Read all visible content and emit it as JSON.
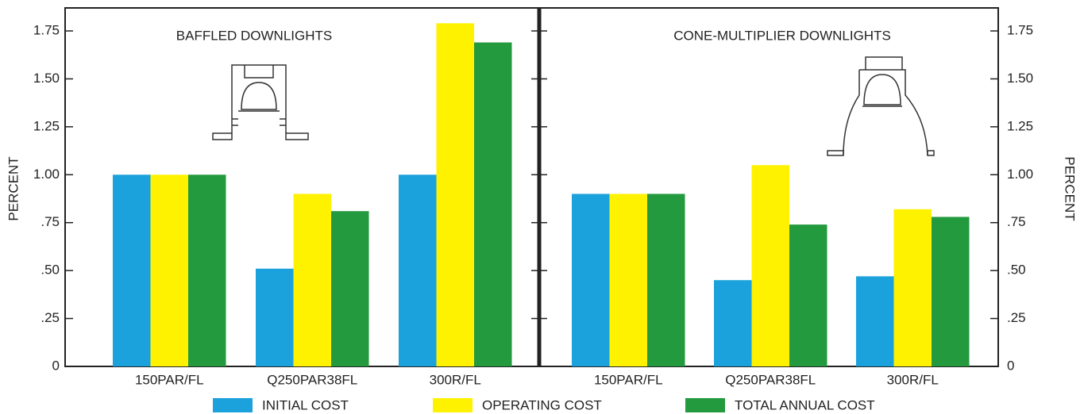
{
  "chart_data": [
    {
      "type": "bar",
      "title": "BAFFLED DOWNLIGHTS",
      "y_label": "PERCENT",
      "categories": [
        "150PAR/FL",
        "Q250PAR38FL",
        "300R/FL"
      ],
      "series": [
        {
          "name": "INITIAL COST",
          "color": "#1ba1dc",
          "values": [
            1.0,
            0.51,
            1.0
          ]
        },
        {
          "name": "OPERATING COST",
          "color": "#fff200",
          "values": [
            1.0,
            0.9,
            1.79
          ]
        },
        {
          "name": "TOTAL ANNUAL COST",
          "color": "#249a3e",
          "values": [
            1.0,
            0.81,
            1.69
          ]
        }
      ],
      "ylim": [
        0,
        1.87
      ],
      "yticks": [
        0,
        {
          "value": 0.25,
          "label": ".25"
        },
        {
          "value": 0.5,
          "label": ".50"
        },
        {
          "value": 0.75,
          "label": ".75"
        },
        {
          "value": 1.0,
          "label": "1.00"
        },
        {
          "value": 1.25,
          "label": "1.25"
        },
        {
          "value": 1.5,
          "label": "1.50"
        },
        {
          "value": 1.75,
          "label": "1.75"
        }
      ]
    },
    {
      "type": "bar",
      "title": "CONE-MULTIPLIER DOWNLIGHTS",
      "y_label": "PERCENT",
      "categories": [
        "150PAR/FL",
        "Q250PAR38FL",
        "300R/FL"
      ],
      "series": [
        {
          "color": "#1ba1dc",
          "values": [
            0.9,
            0.45,
            0.47
          ]
        },
        {
          "color": "#fff200",
          "values": [
            0.9,
            1.05,
            0.82
          ]
        },
        {
          "color": "#249a3e",
          "values": [
            0.9,
            0.74,
            0.78
          ]
        }
      ],
      "ylim": [
        0,
        1.87
      ],
      "yticks": [
        0,
        {
          "value": 0.25,
          "label": ".25"
        },
        {
          "value": 0.5,
          "label": ".50"
        },
        {
          "value": 0.75,
          "label": ".75"
        },
        {
          "value": 1.0,
          "label": "1.00"
        },
        {
          "value": 1.25,
          "label": "1.25"
        },
        {
          "value": 1.5,
          "label": "1.50"
        },
        {
          "value": 1.75,
          "label": "1.75"
        }
      ]
    }
  ]
}
